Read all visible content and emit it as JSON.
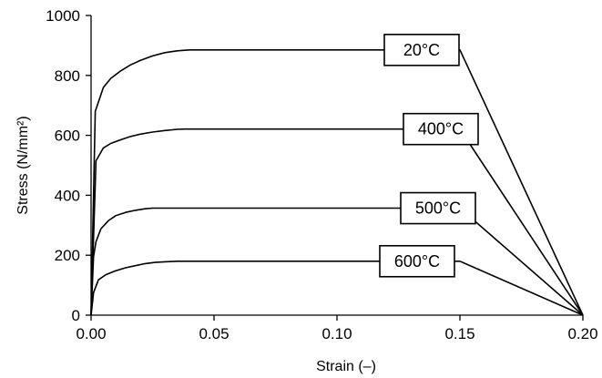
{
  "chart_data": {
    "type": "line",
    "title": "",
    "xlabel": "Strain (–)",
    "ylabel": "Stress (N/mm²)",
    "xlim": [
      0,
      0.2
    ],
    "ylim": [
      0,
      1000
    ],
    "xticks": [
      0,
      0.05,
      0.1,
      0.15,
      0.2
    ],
    "xtick_labels": [
      "0.00",
      "0.05",
      "0.10",
      "0.15",
      "0.20"
    ],
    "yticks": [
      0,
      200,
      400,
      600,
      800,
      1000
    ],
    "ytick_labels": [
      "0",
      "200",
      "400",
      "600",
      "800",
      "1000"
    ],
    "grid": false,
    "legend": "none",
    "line_color": "#000000",
    "series": [
      {
        "name": "20°C",
        "x": [
          0,
          0.0017,
          0.005,
          0.008,
          0.012,
          0.016,
          0.02,
          0.025,
          0.03,
          0.035,
          0.04,
          0.15,
          0.2
        ],
        "y": [
          0,
          680,
          760,
          790,
          815,
          835,
          850,
          865,
          876,
          882,
          885,
          885,
          0
        ]
      },
      {
        "name": "400°C",
        "x": [
          0,
          0.002,
          0.005,
          0.008,
          0.012,
          0.016,
          0.02,
          0.025,
          0.03,
          0.035,
          0.038,
          0.15,
          0.2
        ],
        "y": [
          0,
          515,
          558,
          573,
          585,
          596,
          604,
          611,
          616,
          620,
          621,
          621,
          0
        ]
      },
      {
        "name": "500°C",
        "x": [
          0,
          0.001,
          0.002,
          0.004,
          0.007,
          0.01,
          0.014,
          0.018,
          0.022,
          0.025,
          0.15,
          0.2
        ],
        "y": [
          0,
          195,
          245,
          288,
          315,
          332,
          343,
          350,
          355,
          357,
          357,
          0
        ]
      },
      {
        "name": "600°C",
        "x": [
          0,
          0.001,
          0.003,
          0.006,
          0.01,
          0.014,
          0.018,
          0.022,
          0.026,
          0.03,
          0.035,
          0.15,
          0.2
        ],
        "y": [
          0,
          75,
          118,
          135,
          148,
          158,
          165,
          172,
          176,
          178,
          180,
          180,
          0
        ]
      }
    ]
  }
}
